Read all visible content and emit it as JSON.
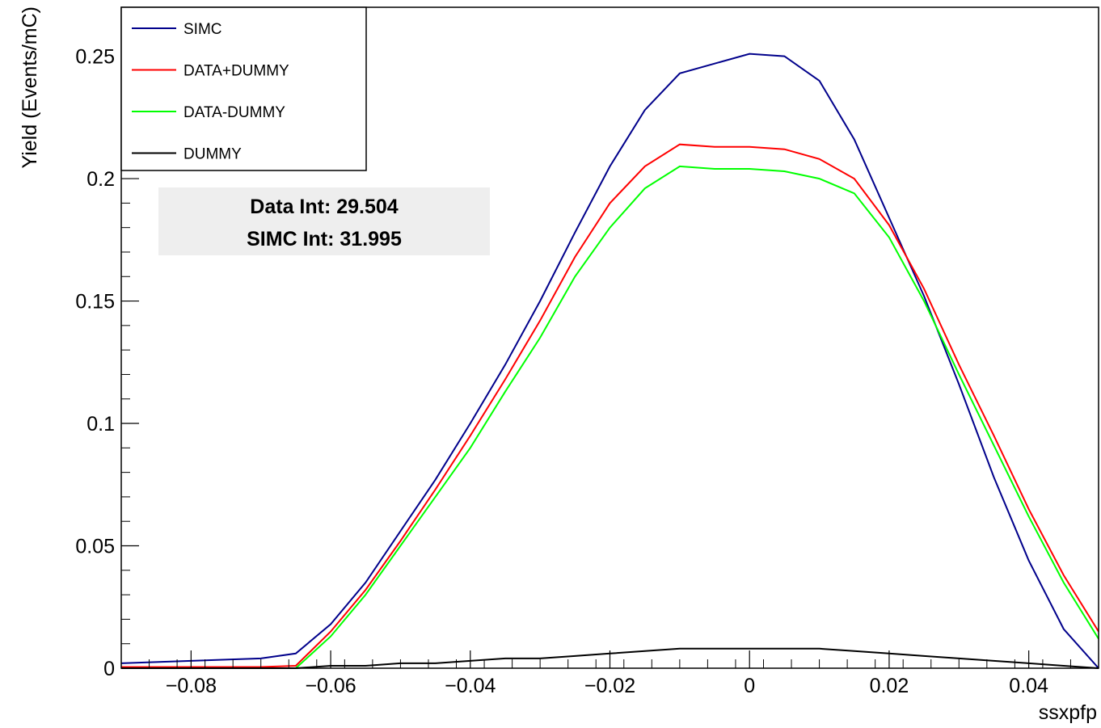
{
  "chart_data": {
    "type": "line",
    "title": "",
    "xlabel": "ssxpfp",
    "ylabel": "Yield (Events/mC)",
    "xlim": [
      -0.09,
      0.05
    ],
    "ylim": [
      0,
      0.27
    ],
    "x_ticks": [
      {
        "value": -0.08,
        "label": "−0.08"
      },
      {
        "value": -0.06,
        "label": "−0.06"
      },
      {
        "value": -0.04,
        "label": "−0.04"
      },
      {
        "value": -0.02,
        "label": "−0.02"
      },
      {
        "value": 0,
        "label": "0"
      },
      {
        "value": 0.02,
        "label": "0.02"
      },
      {
        "value": 0.04,
        "label": "0.04"
      }
    ],
    "y_ticks": [
      {
        "value": 0,
        "label": "0"
      },
      {
        "value": 0.05,
        "label": "0.05"
      },
      {
        "value": 0.1,
        "label": "0.1"
      },
      {
        "value": 0.15,
        "label": "0.15"
      },
      {
        "value": 0.2,
        "label": "0.2"
      },
      {
        "value": 0.25,
        "label": "0.25"
      }
    ],
    "grid": false,
    "legend_position": "top-left",
    "series": [
      {
        "name": "SIMC",
        "color": "#00008b",
        "x": [
          -0.09,
          -0.08,
          -0.07,
          -0.065,
          -0.06,
          -0.055,
          -0.05,
          -0.045,
          -0.04,
          -0.035,
          -0.03,
          -0.025,
          -0.02,
          -0.015,
          -0.01,
          -0.005,
          0,
          0.005,
          0.01,
          0.015,
          0.02,
          0.025,
          0.03,
          0.035,
          0.04,
          0.045,
          0.05
        ],
        "y": [
          0.002,
          0.003,
          0.004,
          0.006,
          0.018,
          0.035,
          0.056,
          0.077,
          0.1,
          0.124,
          0.15,
          0.178,
          0.205,
          0.228,
          0.243,
          0.247,
          0.251,
          0.25,
          0.24,
          0.216,
          0.184,
          0.152,
          0.116,
          0.078,
          0.044,
          0.016,
          0.0
        ]
      },
      {
        "name": "DATA+DUMMY",
        "color": "#ff0000",
        "x": [
          -0.09,
          -0.08,
          -0.07,
          -0.065,
          -0.06,
          -0.055,
          -0.05,
          -0.045,
          -0.04,
          -0.035,
          -0.03,
          -0.025,
          -0.02,
          -0.015,
          -0.01,
          -0.005,
          0,
          0.005,
          0.01,
          0.015,
          0.02,
          0.025,
          0.03,
          0.035,
          0.04,
          0.045,
          0.05
        ],
        "y": [
          0.0005,
          0.0005,
          0.0005,
          0.001,
          0.015,
          0.032,
          0.052,
          0.073,
          0.095,
          0.118,
          0.142,
          0.168,
          0.19,
          0.205,
          0.214,
          0.213,
          0.213,
          0.212,
          0.208,
          0.2,
          0.181,
          0.155,
          0.124,
          0.095,
          0.065,
          0.038,
          0.015
        ]
      },
      {
        "name": "DATA-DUMMY",
        "color": "#00ff00",
        "x": [
          -0.09,
          -0.08,
          -0.07,
          -0.065,
          -0.06,
          -0.055,
          -0.05,
          -0.045,
          -0.04,
          -0.035,
          -0.03,
          -0.025,
          -0.02,
          -0.015,
          -0.01,
          -0.005,
          0,
          0.005,
          0.01,
          0.015,
          0.02,
          0.025,
          0.03,
          0.035,
          0.04,
          0.045,
          0.05
        ],
        "y": [
          0.0,
          0.0,
          0.0,
          0.0,
          0.013,
          0.03,
          0.05,
          0.07,
          0.09,
          0.113,
          0.135,
          0.16,
          0.18,
          0.196,
          0.205,
          0.204,
          0.204,
          0.203,
          0.2,
          0.194,
          0.176,
          0.15,
          0.12,
          0.091,
          0.062,
          0.035,
          0.012
        ]
      },
      {
        "name": "DUMMY",
        "color": "#000000",
        "x": [
          -0.09,
          -0.08,
          -0.07,
          -0.065,
          -0.06,
          -0.055,
          -0.05,
          -0.045,
          -0.04,
          -0.035,
          -0.03,
          -0.025,
          -0.02,
          -0.015,
          -0.01,
          -0.005,
          0,
          0.005,
          0.01,
          0.015,
          0.02,
          0.025,
          0.03,
          0.035,
          0.04,
          0.045,
          0.05
        ],
        "y": [
          0.0,
          0.0,
          0.0,
          0.0,
          0.001,
          0.001,
          0.002,
          0.002,
          0.003,
          0.004,
          0.004,
          0.005,
          0.006,
          0.007,
          0.008,
          0.008,
          0.008,
          0.008,
          0.008,
          0.007,
          0.006,
          0.005,
          0.004,
          0.003,
          0.002,
          0.001,
          0.0
        ]
      }
    ],
    "stat_box": {
      "lines": [
        "Data Int: 29.504",
        "SIMC Int: 31.995"
      ]
    }
  }
}
